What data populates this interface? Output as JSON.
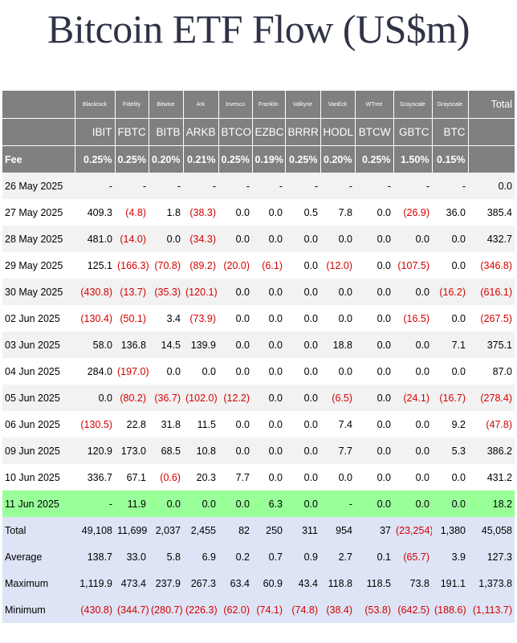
{
  "title": "Bitcoin ETF Flow (US$m)",
  "columns": {
    "issuers": [
      "Blackrock",
      "Fidelity",
      "Bitwise",
      "Ark",
      "Invesco",
      "Franklin",
      "Valkyrie",
      "VanEck",
      "WTree",
      "Grayscale",
      "Grayscale"
    ],
    "total_label": "Total",
    "tickers": [
      "IBIT",
      "FBTC",
      "BITB",
      "ARKB",
      "BTCO",
      "EZBC",
      "BRRR",
      "HODL",
      "BTCW",
      "GBTC",
      "BTC"
    ],
    "fee_label": "Fee",
    "fees": [
      "0.25%",
      "0.25%",
      "0.20%",
      "0.21%",
      "0.25%",
      "0.19%",
      "0.25%",
      "0.20%",
      "0.25%",
      "1.50%",
      "0.15%"
    ]
  },
  "rows": [
    {
      "date": "26 May 2025",
      "values": [
        "-",
        "-",
        "-",
        "-",
        "-",
        "-",
        "-",
        "-",
        "-",
        "-",
        "-"
      ],
      "total": "0.0"
    },
    {
      "date": "27 May 2025",
      "values": [
        "409.3",
        "(4.8)",
        "1.8",
        "(38.3)",
        "0.0",
        "0.0",
        "0.5",
        "7.8",
        "0.0",
        "(26.9)",
        "36.0"
      ],
      "total": "385.4"
    },
    {
      "date": "28 May 2025",
      "values": [
        "481.0",
        "(14.0)",
        "0.0",
        "(34.3)",
        "0.0",
        "0.0",
        "0.0",
        "0.0",
        "0.0",
        "0.0",
        "0.0"
      ],
      "total": "432.7"
    },
    {
      "date": "29 May 2025",
      "values": [
        "125.1",
        "(166.3)",
        "(70.8)",
        "(89.2)",
        "(20.0)",
        "(6.1)",
        "0.0",
        "(12.0)",
        "0.0",
        "(107.5)",
        "0.0"
      ],
      "total": "(346.8)"
    },
    {
      "date": "30 May 2025",
      "values": [
        "(430.8)",
        "(13.7)",
        "(35.3)",
        "(120.1)",
        "0.0",
        "0.0",
        "0.0",
        "0.0",
        "0.0",
        "0.0",
        "(16.2)"
      ],
      "total": "(616.1)"
    },
    {
      "date": "02 Jun 2025",
      "values": [
        "(130.4)",
        "(50.1)",
        "3.4",
        "(73.9)",
        "0.0",
        "0.0",
        "0.0",
        "0.0",
        "0.0",
        "(16.5)",
        "0.0"
      ],
      "total": "(267.5)"
    },
    {
      "date": "03 Jun 2025",
      "values": [
        "58.0",
        "136.8",
        "14.5",
        "139.9",
        "0.0",
        "0.0",
        "0.0",
        "18.8",
        "0.0",
        "0.0",
        "7.1"
      ],
      "total": "375.1"
    },
    {
      "date": "04 Jun 2025",
      "values": [
        "284.0",
        "(197.0)",
        "0.0",
        "0.0",
        "0.0",
        "0.0",
        "0.0",
        "0.0",
        "0.0",
        "0.0",
        "0.0"
      ],
      "total": "87.0"
    },
    {
      "date": "05 Jun 2025",
      "values": [
        "0.0",
        "(80.2)",
        "(36.7)",
        "(102.0)",
        "(12.2)",
        "0.0",
        "0.0",
        "(6.5)",
        "0.0",
        "(24.1)",
        "(16.7)"
      ],
      "total": "(278.4)"
    },
    {
      "date": "06 Jun 2025",
      "values": [
        "(130.5)",
        "22.8",
        "31.8",
        "11.5",
        "0.0",
        "0.0",
        "0.0",
        "7.4",
        "0.0",
        "0.0",
        "9.2"
      ],
      "total": "(47.8)"
    },
    {
      "date": "09 Jun 2025",
      "values": [
        "120.9",
        "173.0",
        "68.5",
        "10.8",
        "0.0",
        "0.0",
        "0.0",
        "7.7",
        "0.0",
        "0.0",
        "5.3"
      ],
      "total": "386.2"
    },
    {
      "date": "10 Jun 2025",
      "values": [
        "336.7",
        "67.1",
        "(0.6)",
        "20.3",
        "7.7",
        "0.0",
        "0.0",
        "0.0",
        "0.0",
        "0.0",
        "0.0"
      ],
      "total": "431.2"
    },
    {
      "date": "11 Jun 2025",
      "values": [
        "-",
        "11.9",
        "0.0",
        "0.0",
        "0.0",
        "6.3",
        "0.0",
        "-",
        "0.0",
        "0.0",
        "0.0"
      ],
      "total": "18.2",
      "highlight": true
    }
  ],
  "summary": [
    {
      "label": "Total",
      "values": [
        "49,108",
        "11,699",
        "2,037",
        "2,455",
        "82",
        "250",
        "311",
        "954",
        "37",
        "(23,254)",
        "1,380"
      ],
      "total": "45,058"
    },
    {
      "label": "Average",
      "values": [
        "138.7",
        "33.0",
        "5.8",
        "6.9",
        "0.2",
        "0.7",
        "0.9",
        "2.7",
        "0.1",
        "(65.7)",
        "3.9"
      ],
      "total": "127.3"
    },
    {
      "label": "Maximum",
      "values": [
        "1,119.9",
        "473.4",
        "237.9",
        "267.3",
        "63.4",
        "60.9",
        "43.4",
        "118.8",
        "118.5",
        "73.8",
        "191.1"
      ],
      "total": "1,373.8"
    },
    {
      "label": "Minimum",
      "values": [
        "(430.8)",
        "(344.7)",
        "(280.7)",
        "(226.3)",
        "(62.0)",
        "(74.1)",
        "(74.8)",
        "(38.4)",
        "(53.8)",
        "(642.5)",
        "(188.6)"
      ],
      "total": "(1,113.7)"
    }
  ],
  "colors": {
    "header_bg": "#808080",
    "negative": "#d40000",
    "highlight_row": "#99ff99",
    "summary_bg": "#dde4f5",
    "title": "#2f3346"
  }
}
